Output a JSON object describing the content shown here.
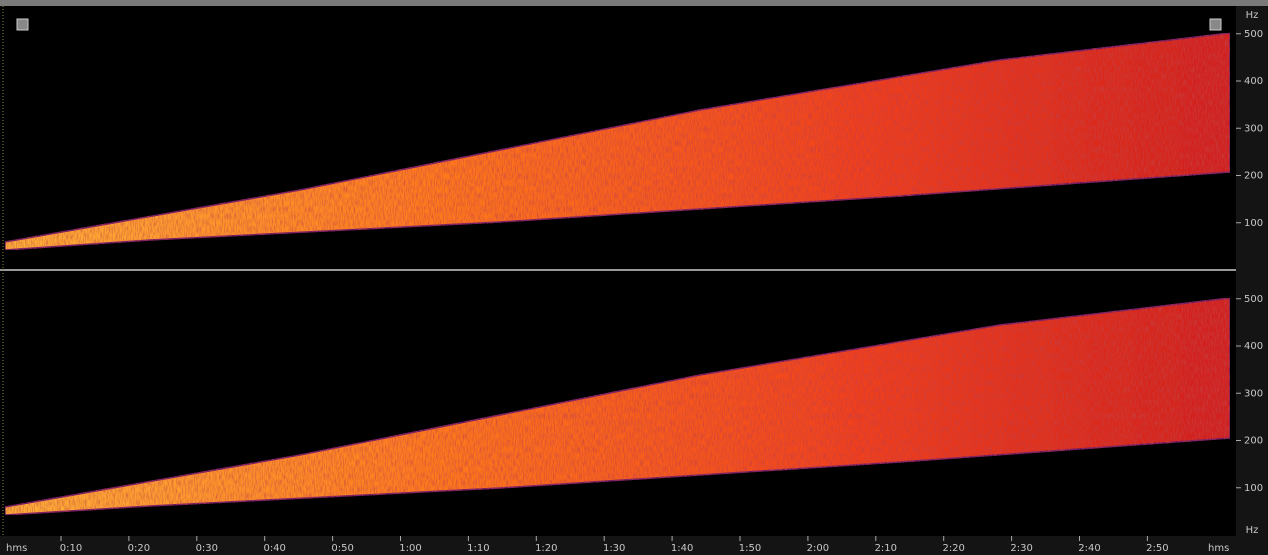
{
  "channels": [
    {
      "unit": "Hz",
      "ticks": [
        100,
        200,
        300,
        400,
        500
      ]
    },
    {
      "unit": "Hz",
      "ticks": [
        100,
        200,
        300,
        400,
        500
      ]
    }
  ],
  "time_axis": {
    "unit_start": "hms",
    "labels": [
      "0:10",
      "0:20",
      "0:30",
      "0:40",
      "0:50",
      "1:00",
      "1:10",
      "1:20",
      "1:30",
      "1:40",
      "1:50",
      "2:00",
      "2:10",
      "2:20",
      "2:30",
      "2:40",
      "2:50"
    ],
    "unit_end": "hms"
  }
}
